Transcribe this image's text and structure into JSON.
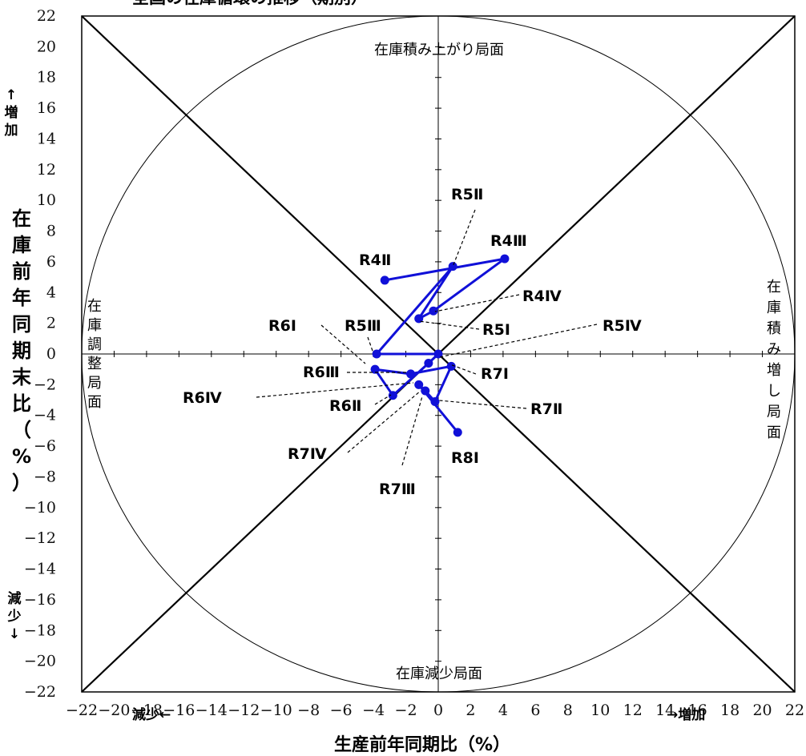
{
  "chart_data": {
    "type": "scatter",
    "title": "全国の在庫循環の推移（期別）",
    "xlabel": "生産前年同期比（%）",
    "ylabel": "在庫前年同期末比（%）",
    "x_axis_left_note": "減少←",
    "x_axis_right_note": "→増加",
    "y_axis_top_note": "↑増加",
    "y_axis_bottom_note": "減少↓",
    "xlim": [
      -22,
      22
    ],
    "ylim": [
      -22,
      22
    ],
    "x_ticks": [
      "−22",
      "−20",
      "−18",
      "−16",
      "−14",
      "−12",
      "−10",
      "−8",
      "−6",
      "−4",
      "−2",
      "0",
      "2",
      "4",
      "6",
      "8",
      "10",
      "12",
      "14",
      "16",
      "18",
      "20",
      "22"
    ],
    "y_ticks": [
      "22",
      "20",
      "18",
      "16",
      "14",
      "12",
      "10",
      "8",
      "6",
      "4",
      "2",
      "0",
      "−2",
      "−4",
      "−6",
      "−8",
      "−10",
      "−12",
      "−14",
      "−16",
      "−18",
      "−20",
      "−22"
    ],
    "regions": {
      "top": "在庫積み上がり局面",
      "bottom": "在庫減少局面",
      "left": "在庫調整局面",
      "right": "在庫積み増し局面"
    },
    "series_color": "#1010d8",
    "points": [
      {
        "label": "R4Ⅱ",
        "x": -3.3,
        "y": 4.8
      },
      {
        "label": "R4Ⅲ",
        "x": 4.1,
        "y": 6.2
      },
      {
        "label": "R4Ⅳ",
        "x": -0.3,
        "y": 2.8
      },
      {
        "label": "R5Ⅰ",
        "x": -1.2,
        "y": 2.3
      },
      {
        "label": "R5Ⅱ",
        "x": 0.9,
        "y": 5.7
      },
      {
        "label": "R5Ⅲ",
        "x": -3.8,
        "y": 0.0
      },
      {
        "label": "R5Ⅳ",
        "x": 0.0,
        "y": 0.0
      },
      {
        "label": "R6Ⅰ",
        "x": -0.6,
        "y": -0.6
      },
      {
        "label": "R6Ⅱ",
        "x": -2.8,
        "y": -2.7
      },
      {
        "label": "R6Ⅲ",
        "x": -3.9,
        "y": -1.0
      },
      {
        "label": "R6Ⅳ",
        "x": -1.7,
        "y": -1.3
      },
      {
        "label": "R7Ⅰ",
        "x": 0.8,
        "y": -0.8
      },
      {
        "label": "R7Ⅱ",
        "x": -0.2,
        "y": -3.1
      },
      {
        "label": "R7Ⅲ",
        "x": -0.8,
        "y": -2.4
      },
      {
        "label": "R7Ⅳ",
        "x": -1.2,
        "y": -2.0
      },
      {
        "label": "R8Ⅰ",
        "x": 1.2,
        "y": -5.1
      }
    ]
  }
}
